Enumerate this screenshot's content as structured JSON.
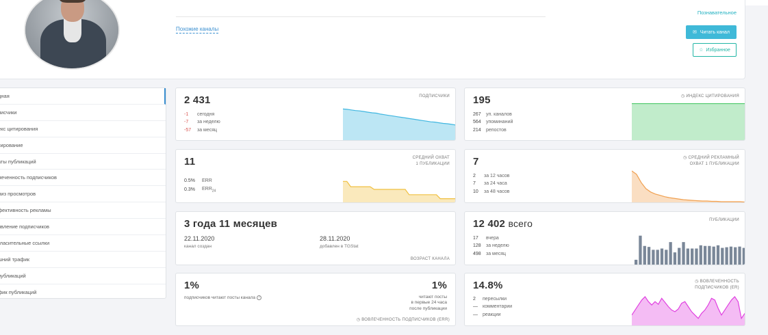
{
  "profile": {
    "similar_channels": "Похожие каналы",
    "category": "Познавательное",
    "read_button": "Читать канал",
    "favorite_button": "Избранное"
  },
  "sidebar": {
    "items": [
      {
        "label": "дная",
        "active": true
      },
      {
        "label": "писчики"
      },
      {
        "label": "екс цитирования"
      },
      {
        "label": "тирование"
      },
      {
        "label": "аты публикаций"
      },
      {
        "label": "леченность подписчиков"
      },
      {
        "label": "лиз просмотров"
      },
      {
        "label": "фективность рекламы"
      },
      {
        "label": "явление подписчиков"
      },
      {
        "label": "гласительные ссылки"
      },
      {
        "label": "шний трафик"
      },
      {
        "label": "публикаций"
      },
      {
        "label": "фик публикаций"
      }
    ]
  },
  "cards": {
    "subscribers": {
      "value": "2 431",
      "title": "ПОДПИСЧИКИ",
      "rows": [
        {
          "num": "-1",
          "label": "сегодня"
        },
        {
          "num": "-7",
          "label": "за неделю"
        },
        {
          "num": "-57",
          "label": "за месяц"
        }
      ],
      "color": "#3fb6e0"
    },
    "citation": {
      "value": "195",
      "title": "◷ ИНДЕКС ЦИТИРОВАНИЯ",
      "rows": [
        {
          "num": "267",
          "label": "уп. каналов"
        },
        {
          "num": "564",
          "label": "упоминаний"
        },
        {
          "num": "214",
          "label": "репостов"
        }
      ],
      "color": "#4cc86a"
    },
    "reach": {
      "value": "11",
      "title_1": "СРЕДНИЙ ОХВАТ",
      "title_2": "1 ПУБЛИКАЦИИ",
      "err": {
        "num": "0.5%",
        "label": "ERR"
      },
      "err24": {
        "num": "0.3%",
        "label": "ERR",
        "sub": "24"
      },
      "color": "#f0c040"
    },
    "ad_reach": {
      "value": "7",
      "title_1": "◷ СРЕДНИЙ РЕКЛАМНЫЙ",
      "title_2": "ОХВАТ 1 ПУБЛИКАЦИИ",
      "rows": [
        {
          "num": "2",
          "label": "за 12 часов"
        },
        {
          "num": "7",
          "label": "за 24 часа"
        },
        {
          "num": "10",
          "label": "за 48 часов"
        }
      ],
      "color": "#f0a050"
    },
    "age": {
      "value": "3 года 11 месяцев",
      "created_date": "22.11.2020",
      "created_label": "канал создан",
      "added_date": "28.11.2020",
      "added_label": "добавлен в TGStat",
      "title": "ВОЗРАСТ КАНАЛА"
    },
    "posts": {
      "value_num": "12 402",
      "value_suffix": "всего",
      "title": "ПУБЛИКАЦИИ",
      "rows": [
        {
          "num": "17",
          "label": "вчера"
        },
        {
          "num": "128",
          "label": "за неделю"
        },
        {
          "num": "498",
          "label": "за месяц"
        }
      ],
      "color": "#7a8798"
    },
    "read_pct": {
      "left_value": "1%",
      "left_label": "подписчиков читают посты канала",
      "right_value": "1%",
      "right_label_1": "читают посты",
      "right_label_2": "в первые 24 часа",
      "right_label_3": "после публикации",
      "footer": "◷ ВОВЛЕЧЕННОСТЬ ПОДПИСЧИКОВ (ERR)"
    },
    "engagement": {
      "value": "14.8%",
      "title_1": "◷ ВОВЛЕЧЕННОСТЬ",
      "title_2": "ПОДПИСЧИКОВ (ER)",
      "rows": [
        {
          "num": "2",
          "label": "пересылки"
        },
        {
          "num": "—",
          "label": "комментарии"
        },
        {
          "num": "—",
          "label": "реакции"
        }
      ],
      "color": "#e040e0"
    }
  },
  "chart_data": [
    {
      "type": "area",
      "series": [
        {
          "values": [
            96,
            95,
            93,
            91,
            90,
            88,
            86,
            84,
            83,
            80,
            78,
            76,
            74,
            72,
            70,
            68,
            66,
            64,
            62,
            60,
            58,
            56,
            55,
            53,
            51,
            50,
            48,
            46
          ]
        }
      ]
    },
    {
      "type": "area",
      "series": [
        {
          "values": [
            100,
            100,
            100,
            100,
            100,
            100,
            100,
            100,
            100,
            100
          ]
        }
      ]
    },
    {
      "type": "area",
      "series": [
        {
          "values": [
            80,
            80,
            60,
            60,
            60,
            60,
            60,
            60,
            50,
            50,
            50,
            50,
            50,
            50,
            50,
            50,
            50,
            30,
            30,
            30,
            30,
            30,
            30,
            30,
            30,
            15,
            15,
            15,
            15,
            15
          ]
        }
      ]
    },
    {
      "type": "area",
      "series": [
        {
          "values": [
            95,
            85,
            60,
            42,
            32,
            26,
            22,
            18,
            15,
            13,
            11,
            9,
            8,
            7,
            6,
            5,
            5,
            4,
            4,
            3,
            3,
            3,
            3,
            3,
            2
          ]
        }
      ]
    },
    {
      "type": "bar",
      "series": [
        {
          "values": [
            15,
            90,
            58,
            55,
            46,
            46,
            50,
            46,
            70,
            38,
            52,
            70,
            50,
            50,
            50,
            60,
            58,
            58,
            56,
            60,
            52,
            54,
            56,
            54,
            56,
            52
          ]
        }
      ]
    },
    {
      "type": "area",
      "series": [
        {
          "values": [
            30,
            45,
            60,
            75,
            85,
            70,
            60,
            70,
            62,
            80,
            68,
            55,
            45,
            40,
            48,
            65,
            70,
            55,
            40,
            30,
            20,
            35,
            45,
            60,
            80,
            75,
            50,
            30,
            45,
            60,
            75,
            85,
            70,
            20,
            35
          ]
        }
      ]
    }
  ]
}
